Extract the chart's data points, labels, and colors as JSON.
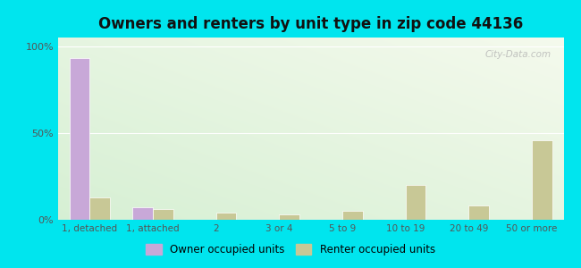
{
  "title": "Owners and renters by unit type in zip code 44136",
  "categories": [
    "1, detached",
    "1, attached",
    "2",
    "3 or 4",
    "5 to 9",
    "10 to 19",
    "20 to 49",
    "50 or more"
  ],
  "owner_values": [
    93,
    7,
    0,
    0,
    0,
    0,
    0,
    0
  ],
  "renter_values": [
    13,
    6,
    4,
    3,
    5,
    20,
    8,
    46
  ],
  "owner_color": "#c8a8d8",
  "renter_color": "#c8c896",
  "background_outer": "#00e5ee",
  "ylabel_ticks": [
    0,
    50,
    100
  ],
  "ylabel_labels": [
    "0%",
    "50%",
    "100%"
  ],
  "ylim": [
    0,
    105
  ],
  "legend_owner": "Owner occupied units",
  "legend_renter": "Renter occupied units",
  "watermark": "City-Data.com",
  "title_fontsize": 12,
  "bg_color_top_left": "#d4ecd4",
  "bg_color_top_right": "#f0f8f0",
  "bg_color_bottom": "#e8f5e8"
}
